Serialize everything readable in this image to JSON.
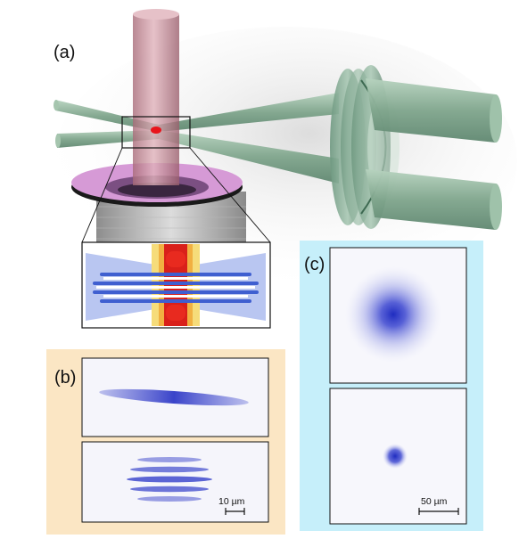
{
  "panels": {
    "a": {
      "label": "(a)"
    },
    "b": {
      "label": "(b)",
      "scale_bar": "10 µm"
    },
    "c": {
      "label": "(c)",
      "scale_bar": "50 µm"
    }
  },
  "colors": {
    "panel_b_background": "#fbe6c4",
    "panel_c_background": "#c6effa",
    "vertical_beam": "#c98b98",
    "horizontal_beams": "#8fb39a",
    "atoms": "#2b36c8",
    "atom_cloud_marker": "#e8141b",
    "platform": "#d69ad6",
    "interference_red": "#d9201a",
    "interference_yellow": "#f5d24a",
    "interference_blue": "#3f5fd0",
    "interference_lightblue": "#a9b8ee"
  }
}
